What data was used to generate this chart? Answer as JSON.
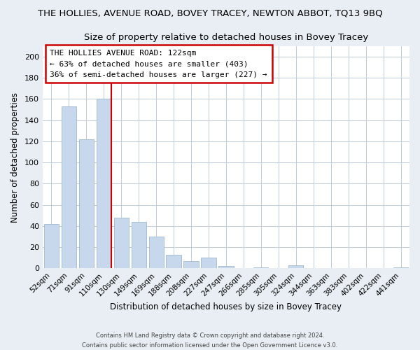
{
  "title": "THE HOLLIES, AVENUE ROAD, BOVEY TRACEY, NEWTON ABBOT, TQ13 9BQ",
  "subtitle": "Size of property relative to detached houses in Bovey Tracey",
  "xlabel": "Distribution of detached houses by size in Bovey Tracey",
  "ylabel": "Number of detached properties",
  "categories": [
    "52sqm",
    "71sqm",
    "91sqm",
    "110sqm",
    "130sqm",
    "149sqm",
    "169sqm",
    "188sqm",
    "208sqm",
    "227sqm",
    "247sqm",
    "266sqm",
    "285sqm",
    "305sqm",
    "324sqm",
    "344sqm",
    "363sqm",
    "383sqm",
    "402sqm",
    "422sqm",
    "441sqm"
  ],
  "values": [
    42,
    153,
    122,
    160,
    48,
    44,
    30,
    13,
    7,
    10,
    2,
    0,
    1,
    0,
    3,
    0,
    0,
    0,
    0,
    0,
    1
  ],
  "bar_color": "#c8d8ec",
  "bar_edgecolor": "#a0b8d0",
  "vline_index": 3,
  "vline_color": "#cc0000",
  "ylim": [
    0,
    210
  ],
  "yticks": [
    0,
    20,
    40,
    60,
    80,
    100,
    120,
    140,
    160,
    180,
    200
  ],
  "annotation_title": "THE HOLLIES AVENUE ROAD: 122sqm",
  "annotation_line1": "← 63% of detached houses are smaller (403)",
  "annotation_line2": "36% of semi-detached houses are larger (227) →",
  "footer1": "Contains HM Land Registry data © Crown copyright and database right 2024.",
  "footer2": "Contains public sector information licensed under the Open Government Licence v3.0.",
  "background_color": "#e8eef4",
  "plot_bg_color": "#ffffff",
  "grid_color": "#c0ccd8"
}
